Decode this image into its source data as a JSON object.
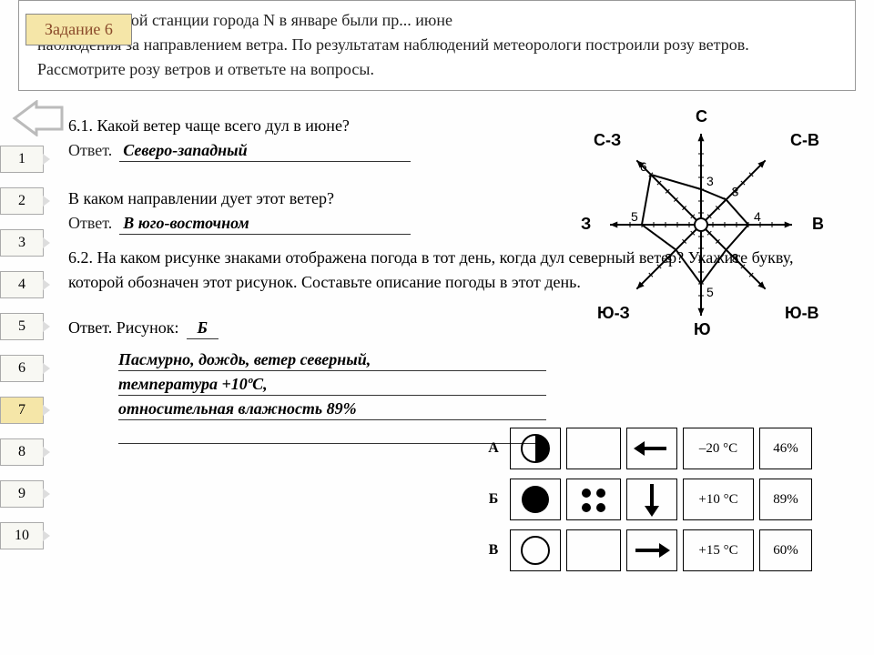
{
  "task_badge": "Задание 6",
  "header_line": "На ... огической станции города N в      январе были пр...                      июне\nнаблюдения за направлением ветра. По результатам наблюдений метеорологи построили розу ветров. Рассмотрите розу ветров и ответьте на вопросы.",
  "nav": [
    "1",
    "2",
    "3",
    "4",
    "5",
    "6",
    "7",
    "8",
    "9",
    "10"
  ],
  "nav_active": 6,
  "q61": "6.1. Какой ветер чаще всего дул в июне?",
  "a_label": "Ответ.",
  "a61": "Северо-западный",
  "q61b": "В каком направлении дует этот ветер?",
  "a61b": "В юго-восточном",
  "q62": "6.2. На каком рисунке знаками отображена погода в тот день, когда дул северный ветер? Укажите букву, которой обозначен этот рисунок. Составьте описание погоды в этот день.",
  "a62_prefix": "Ответ. Рисунок: ",
  "a62_letter": "Б",
  "desc1": "Пасмурно, дождь, ветер северный,",
  "desc2": "температура +10ºС,",
  "desc3": "относительная влажность 89%",
  "compass": {
    "n": "С",
    "ne": "С-В",
    "e": "В",
    "se": "Ю-В",
    "s": "Ю",
    "sw": "Ю-З",
    "w": "З",
    "nw": "С-З"
  },
  "rose_values": {
    "n": 3,
    "ne": 3,
    "e": 4,
    "se": 3,
    "s": 5,
    "sw": 3,
    "w": 5,
    "nw": 6
  },
  "weather": [
    {
      "label": "А",
      "cloud": "half",
      "precip": "none",
      "wind": "left",
      "temp": "–20 °C",
      "hum": "46%"
    },
    {
      "label": "Б",
      "cloud": "full",
      "precip": "rain",
      "wind": "down",
      "temp": "+10 °C",
      "hum": "89%"
    },
    {
      "label": "В",
      "cloud": "empty",
      "precip": "none",
      "wind": "right",
      "temp": "+15 °C",
      "hum": "60%"
    }
  ],
  "colors": {
    "badge_bg": "#f5e6a8",
    "border": "#888",
    "text": "#222"
  }
}
